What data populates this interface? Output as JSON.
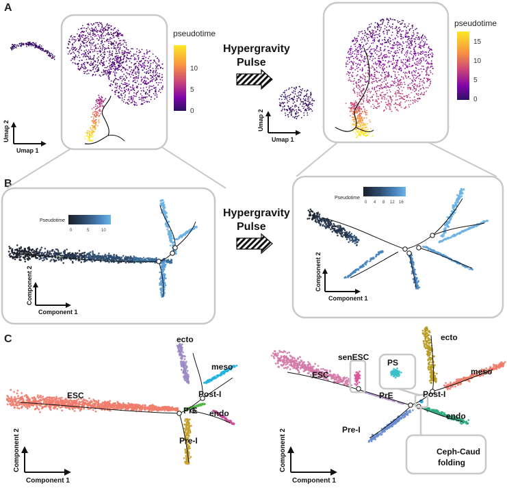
{
  "panels": {
    "a": "A",
    "b": "B",
    "c": "C"
  },
  "arrows": {
    "top": {
      "line1": "Hypergravity",
      "line2": "Pulse"
    },
    "mid": {
      "line1": "Hypergravity",
      "line2": "Pulse"
    }
  },
  "umap_axes": {
    "x": "Umap 1",
    "y": "Umap 2"
  },
  "comp_axes": {
    "x": "Component 1",
    "y": "Component 2"
  },
  "legends": {
    "a_left": {
      "title": "pseudotime",
      "ticks": [
        "10",
        "5",
        "0"
      ],
      "colors": [
        "#fde725",
        "#f89540",
        "#cc4778",
        "#7e03a8",
        "#2c1160"
      ]
    },
    "a_right": {
      "title": "pseudotime",
      "ticks": [
        "15",
        "10",
        "5",
        "0"
      ],
      "colors": [
        "#fde725",
        "#f89540",
        "#cc4778",
        "#7e03a8",
        "#2c1160"
      ]
    },
    "b_left": {
      "title": "Pseudotime",
      "ticks": [
        "0",
        "5",
        "10"
      ],
      "colors": [
        "#1b1f2a",
        "#2f4d6e",
        "#4a86bf",
        "#6bb3e6"
      ]
    },
    "b_right": {
      "title": "Pseudotime",
      "ticks": [
        "0",
        "4",
        "8",
        "12",
        "16"
      ],
      "colors": [
        "#1b1f2a",
        "#2f4d6e",
        "#4a86bf",
        "#6bb3e6"
      ]
    }
  },
  "cell_labels": {
    "left": {
      "esc": "ESC",
      "ecto": "ecto",
      "meso": "meso",
      "post_i": "Post-I",
      "pre": "PrE",
      "endo": "endo",
      "pre_i": "Pre-I"
    },
    "right": {
      "senesc": "senESC",
      "esc": "ESC",
      "ps": "PS",
      "ecto": "ecto",
      "meso": "meso",
      "post_i": "Post-I",
      "pre": "PrE",
      "endo": "endo",
      "pre_i": "Pre-I",
      "ceph1": "Ceph-Caud",
      "ceph2": "folding"
    }
  },
  "cell_colors": {
    "esc": "#f07c6c",
    "ecto": "#9b8ac4",
    "meso": "#22b3e0",
    "post_i": "#54b948",
    "pre": "#4caf50",
    "endo": "#c94f9a",
    "pre_i": "#c7a02a",
    "senesc": "#d9559c",
    "esc_r": "#d47aa8",
    "ps": "#3cc0c8",
    "ecto_r": "#b89a22",
    "meso_r": "#ee7b6a",
    "endo_r": "#2eaa7c",
    "pre_i_r": "#6c8cd0",
    "ceph": "#29a9e0"
  }
}
